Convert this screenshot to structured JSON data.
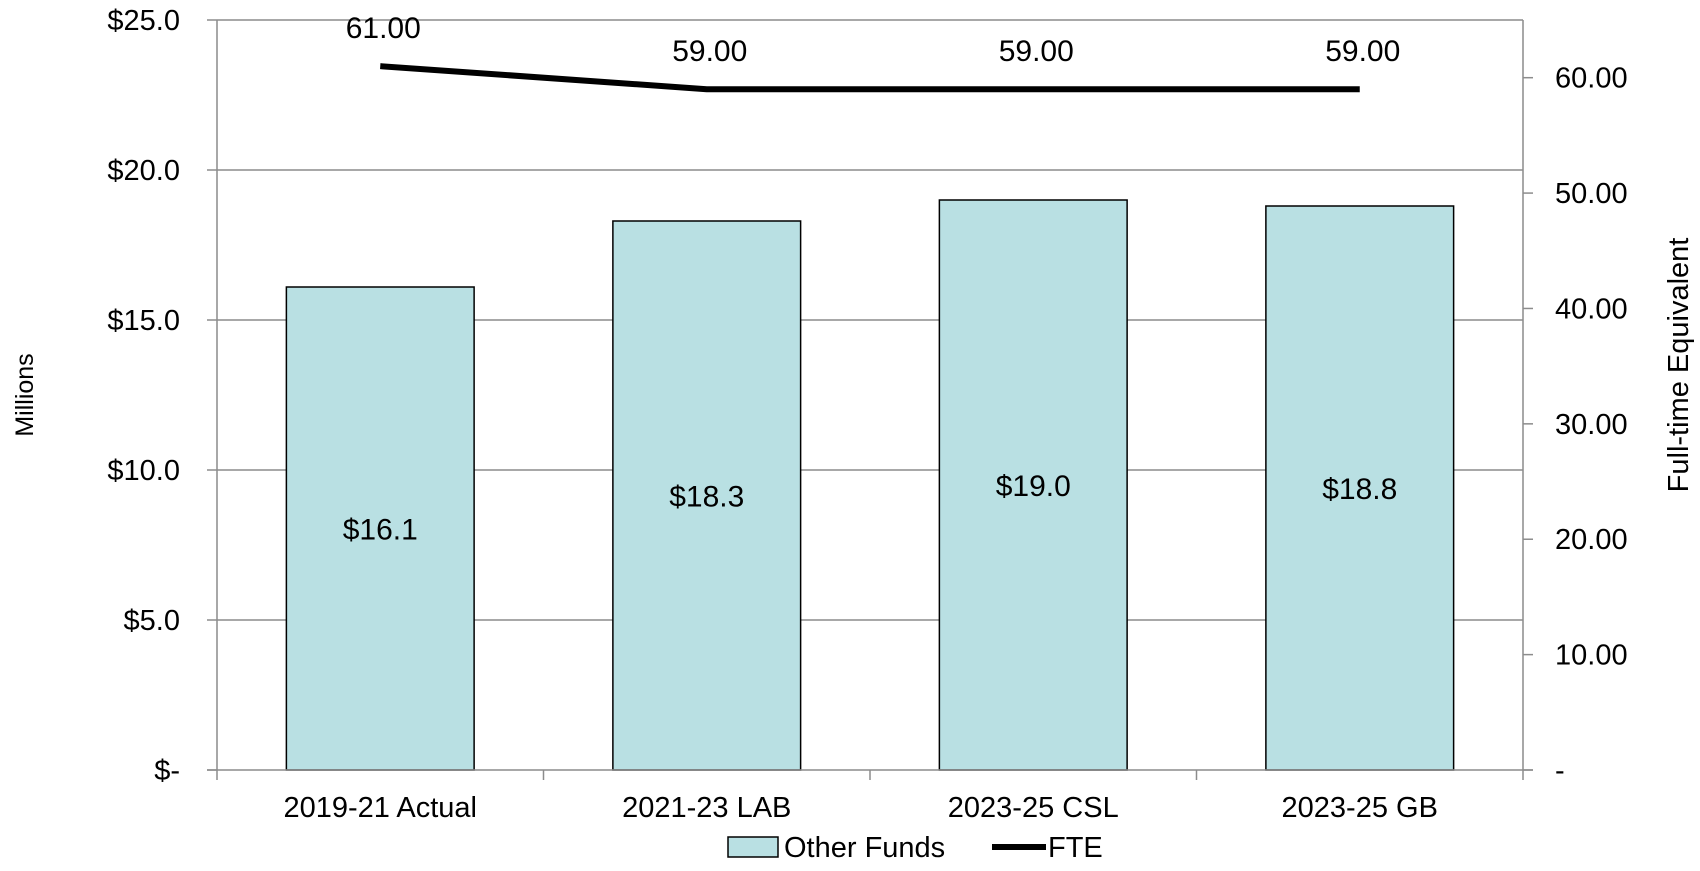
{
  "chart_data": {
    "type": "bar",
    "categories": [
      "2019-21 Actual",
      "2021-23 LAB",
      "2023-25 CSL",
      "2023-25 GB"
    ],
    "series": [
      {
        "name": "Other Funds",
        "kind": "bar",
        "axis": "left",
        "values": [
          16.1,
          18.3,
          19.0,
          18.8
        ],
        "labels": [
          "$16.1",
          "$18.3",
          "$19.0",
          "$18.8"
        ],
        "color": "#b9e0e3"
      },
      {
        "name": "FTE",
        "kind": "line",
        "axis": "right",
        "values": [
          61.0,
          59.0,
          59.0,
          59.0
        ],
        "labels": [
          "61.00",
          "59.00",
          "59.00",
          "59.00"
        ],
        "color": "#000000"
      }
    ],
    "y_left": {
      "label": "Millions",
      "range": [
        0,
        25
      ],
      "ticks": [
        0,
        5,
        10,
        15,
        20,
        25
      ],
      "tick_labels": [
        "$-",
        "$5.0",
        "$10.0",
        "$15.0",
        "$20.0",
        "$25.0"
      ]
    },
    "y_right": {
      "label": "Full-time Equivalent",
      "range": [
        0,
        65
      ],
      "ticks": [
        0,
        10,
        20,
        30,
        40,
        50,
        60
      ],
      "tick_labels": [
        "-",
        "10.00",
        "20.00",
        "30.00",
        "40.00",
        "50.00",
        "60.00"
      ]
    },
    "grid": true,
    "legend": "bottom-center",
    "title": ""
  }
}
